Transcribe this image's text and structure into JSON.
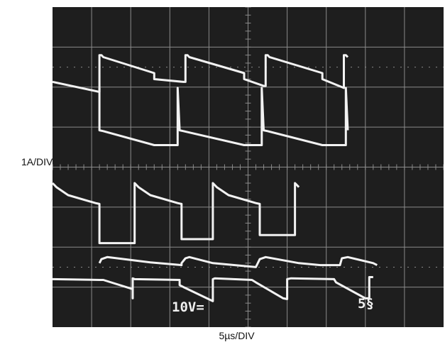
{
  "ylabel": "1A/DIV",
  "xlabel": "5µs/DIV",
  "screen_readouts": {
    "left": "10V=",
    "right": "5§"
  },
  "colors": {
    "screen": "#1e1e1e",
    "graticule": "#8a8a8a",
    "trace": "#f2f2f2"
  },
  "chart_data": {
    "type": "line",
    "title": "",
    "xlabel": "5µs/DIV",
    "ylabel": "1A/DIV",
    "x_divisions": 10,
    "y_divisions": 8,
    "series": [
      {
        "values": [
          [
            0.0,
            6.13
          ],
          [
            1.2,
            5.88
          ],
          [
            1.2,
            5.98
          ],
          [
            1.2,
            6.8
          ],
          [
            1.25,
            6.8
          ],
          [
            1.3,
            6.75
          ],
          [
            2.6,
            6.35
          ],
          [
            2.6,
            6.2
          ],
          [
            3.35,
            6.13
          ],
          [
            3.4,
            6.13
          ],
          [
            3.4,
            6.8
          ],
          [
            3.45,
            6.8
          ],
          [
            3.5,
            6.75
          ],
          [
            4.9,
            6.35
          ],
          [
            4.9,
            6.2
          ],
          [
            5.4,
            6.03
          ],
          [
            5.45,
            6.03
          ],
          [
            5.45,
            6.8
          ],
          [
            5.5,
            6.8
          ],
          [
            5.55,
            6.75
          ],
          [
            6.9,
            6.35
          ],
          [
            6.9,
            6.2
          ],
          [
            7.45,
            5.98
          ],
          [
            7.45,
            6.8
          ],
          [
            7.5,
            6.8
          ],
          [
            7.55,
            6.75
          ]
        ]
      },
      {
        "values": [
          [
            1.2,
            5.98
          ],
          [
            1.2,
            4.92
          ],
          [
            1.3,
            4.9
          ],
          [
            2.6,
            4.55
          ],
          [
            3.2,
            4.55
          ],
          [
            3.2,
            5.98
          ],
          [
            3.25,
            4.92
          ],
          [
            3.35,
            4.9
          ],
          [
            4.9,
            4.55
          ],
          [
            5.35,
            4.55
          ],
          [
            5.35,
            5.98
          ],
          [
            5.4,
            4.92
          ],
          [
            5.5,
            4.9
          ],
          [
            6.9,
            4.55
          ],
          [
            7.5,
            4.55
          ],
          [
            7.5,
            5.98
          ],
          [
            7.55,
            4.92
          ]
        ]
      },
      {
        "values": [
          [
            0.0,
            3.6
          ],
          [
            0.1,
            3.5
          ],
          [
            0.4,
            3.3
          ],
          [
            1.1,
            3.1
          ],
          [
            1.2,
            3.08
          ],
          [
            1.2,
            2.1
          ],
          [
            2.1,
            2.1
          ],
          [
            2.1,
            3.6
          ],
          [
            2.2,
            3.5
          ],
          [
            2.5,
            3.3
          ],
          [
            3.2,
            3.1
          ],
          [
            3.3,
            3.08
          ],
          [
            3.3,
            2.2
          ],
          [
            4.1,
            2.2
          ],
          [
            4.1,
            3.6
          ],
          [
            4.2,
            3.5
          ],
          [
            4.5,
            3.3
          ],
          [
            5.2,
            3.1
          ],
          [
            5.3,
            3.08
          ],
          [
            5.3,
            2.3
          ],
          [
            6.2,
            2.3
          ],
          [
            6.2,
            3.6
          ],
          [
            6.3,
            3.5
          ]
        ]
      },
      {
        "values": [
          [
            1.2,
            1.6
          ],
          [
            1.25,
            1.7
          ],
          [
            1.4,
            1.75
          ],
          [
            2.5,
            1.62
          ],
          [
            3.3,
            1.55
          ],
          [
            3.3,
            1.6
          ],
          [
            3.4,
            1.72
          ],
          [
            3.5,
            1.75
          ],
          [
            4.1,
            1.6
          ],
          [
            5.2,
            1.5
          ],
          [
            5.3,
            1.7
          ],
          [
            5.45,
            1.75
          ],
          [
            6.3,
            1.6
          ],
          [
            6.85,
            1.55
          ],
          [
            7.35,
            1.55
          ],
          [
            7.4,
            1.72
          ],
          [
            7.55,
            1.75
          ],
          [
            8.2,
            1.6
          ],
          [
            8.3,
            1.55
          ]
        ]
      },
      {
        "values": [
          [
            0.0,
            1.2
          ],
          [
            1.2,
            1.18
          ],
          [
            1.25,
            1.18
          ],
          [
            1.3,
            1.18
          ],
          [
            2.05,
            0.95
          ],
          [
            2.05,
            0.72
          ],
          [
            2.05,
            1.22
          ],
          [
            2.1,
            1.2
          ],
          [
            3.25,
            1.18
          ],
          [
            3.25,
            1.05
          ],
          [
            3.35,
            1.0
          ],
          [
            4.1,
            0.65
          ],
          [
            4.1,
            0.72
          ],
          [
            4.1,
            1.2
          ],
          [
            4.15,
            1.22
          ],
          [
            5.1,
            1.18
          ],
          [
            5.2,
            1.12
          ],
          [
            5.9,
            0.72
          ],
          [
            6.0,
            0.7
          ],
          [
            6.0,
            1.2
          ],
          [
            6.1,
            1.22
          ],
          [
            7.2,
            1.2
          ],
          [
            7.25,
            1.12
          ],
          [
            8.0,
            0.72
          ],
          [
            8.1,
            0.72
          ],
          [
            8.1,
            1.25
          ],
          [
            8.2,
            1.25
          ]
        ]
      }
    ]
  }
}
